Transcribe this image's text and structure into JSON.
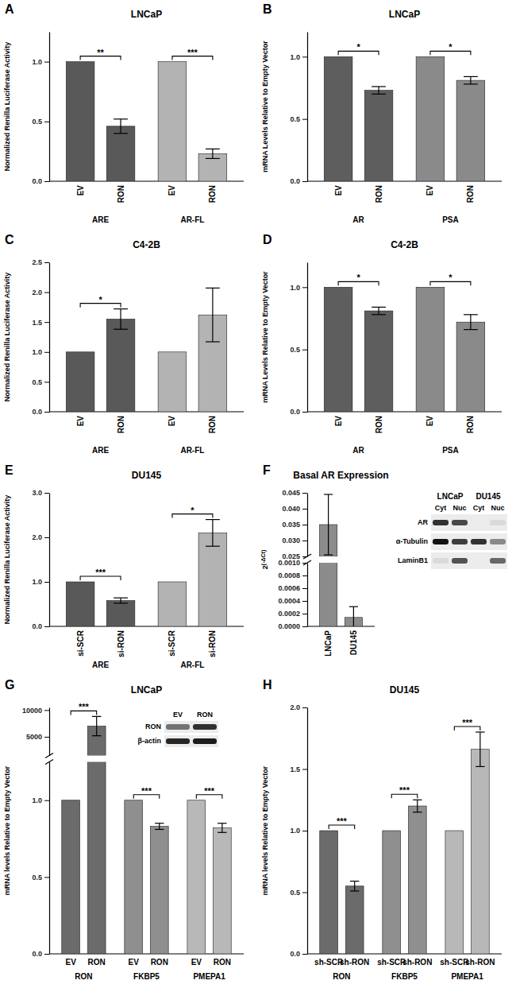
{
  "chart_data": [
    {
      "type": "bar",
      "panel": "A",
      "title": "LNCaP",
      "y_label": "Normalized Renilla Luciferase Activity",
      "groups": [
        "ARE",
        "AR-FL"
      ],
      "categories": [
        "EV",
        "RON",
        "EV",
        "RON"
      ],
      "values": [
        1,
        0.46,
        1,
        0.23
      ],
      "errors": [
        null,
        0.06,
        null,
        0.04
      ],
      "colors": [
        "#595959",
        "#595959",
        "#b3b3b3",
        "#b3b3b3"
      ],
      "ylim": [
        0,
        1.25
      ],
      "yticks": [
        {
          "value": 0,
          "label": "0.0"
        },
        0.5,
        {
          "value": 1,
          "label": "1.0"
        }
      ],
      "annotations": [
        "**",
        "***"
      ]
    },
    {
      "type": "bar",
      "panel": "B",
      "title": "LNCaP",
      "y_label": "mRNA Levels Relative to Empty Vector",
      "groups": [
        "AR",
        "PSA"
      ],
      "categories": [
        "EV",
        "RON",
        "EV",
        "RON"
      ],
      "values": [
        1,
        0.73,
        1,
        0.81
      ],
      "errors": [
        null,
        0.03,
        null,
        0.03
      ],
      "colors": [
        "#5e5e5e",
        "#5e5e5e",
        "#8a8a8a",
        "#8a8a8a"
      ],
      "ylim": [
        0,
        1.2
      ],
      "yticks": [
        {
          "value": 0,
          "label": "0.0"
        },
        0.5,
        {
          "value": 1,
          "label": "1.0"
        }
      ],
      "annotations": [
        "*",
        "*"
      ]
    },
    {
      "type": "bar",
      "panel": "C",
      "title": "C4-2B",
      "y_label": "Normalized Renilla Luciferase Activity",
      "groups": [
        "ARE",
        "AR-FL"
      ],
      "categories": [
        "EV",
        "RON",
        "EV",
        "RON"
      ],
      "values": [
        1,
        1.55,
        1,
        1.62
      ],
      "errors": [
        null,
        0.17,
        null,
        0.45
      ],
      "colors": [
        "#595959",
        "#595959",
        "#b3b3b3",
        "#b3b3b3"
      ],
      "ylim": [
        0,
        2.5
      ],
      "yticks": [
        {
          "value": 0,
          "label": "0.0"
        },
        0.5,
        {
          "value": 1,
          "label": "1.0"
        },
        1.5,
        {
          "value": 2,
          "label": "2.0"
        },
        2.5
      ],
      "annotations": [
        "*",
        null
      ]
    },
    {
      "type": "bar",
      "panel": "D",
      "title": "C4-2B",
      "y_label": "mRNA Levels Relative to Empty Vector",
      "groups": [
        "AR",
        "PSA"
      ],
      "categories": [
        "EV",
        "RON",
        "EV",
        "RON"
      ],
      "values": [
        1,
        0.81,
        1,
        0.72
      ],
      "errors": [
        null,
        0.03,
        null,
        0.06
      ],
      "colors": [
        "#5e5e5e",
        "#5e5e5e",
        "#8a8a8a",
        "#8a8a8a"
      ],
      "ylim": [
        0,
        1.2
      ],
      "yticks": [
        {
          "value": 0,
          "label": "0.0"
        },
        0.5,
        {
          "value": 1,
          "label": "1.0"
        }
      ],
      "annotations": [
        "*",
        "*"
      ]
    },
    {
      "type": "bar",
      "panel": "E",
      "title": "DU145",
      "y_label": "Normalized Renilla Luciferase Activity",
      "groups": [
        "ARE",
        "AR-FL"
      ],
      "categories": [
        "si-SCR",
        "si-RON",
        "si-SCR",
        "si-RON"
      ],
      "values": [
        1,
        0.58,
        1,
        2.1
      ],
      "errors": [
        null,
        0.06,
        null,
        0.3
      ],
      "colors": [
        "#595959",
        "#595959",
        "#b3b3b3",
        "#b3b3b3"
      ],
      "ylim": [
        0,
        3
      ],
      "yticks": [
        {
          "value": 0,
          "label": "0.0"
        },
        {
          "value": 1,
          "label": "1.0"
        },
        {
          "value": 2,
          "label": "2.0"
        },
        {
          "value": 3,
          "label": "3.0"
        }
      ],
      "annotations": [
        "***",
        "*"
      ]
    },
    {
      "type": "bar",
      "panel": "F",
      "title": "Basal AR Expression",
      "y_label": "2(-ΔCt)",
      "categories": [
        "LNCaP",
        "DU145"
      ],
      "values": [
        0.035,
        0.00014
      ],
      "errors": [
        0.0095,
        0.00017
      ],
      "colors": [
        "#8c8c8c",
        "#8c8c8c"
      ],
      "segments": [
        {
          "ylim": [
            0,
            0.001
          ],
          "yticks": [
            {
              "value": 0,
              "label": "0.0000"
            },
            0.0002,
            0.0004,
            0.0006,
            0.0008,
            {
              "value": 0.001,
              "label": "0.0010"
            }
          ]
        },
        {
          "ylim": [
            0.025,
            0.045
          ],
          "yticks": [
            0.025,
            {
              "value": 0.03,
              "label": "0.030"
            },
            0.035,
            {
              "value": 0.04,
              "label": "0.040"
            },
            0.045
          ]
        }
      ],
      "blot": {
        "groups": [
          "LNCaP",
          "DU145"
        ],
        "lanes": [
          "Cyt",
          "Nuc",
          "Cyt",
          "Nuc"
        ],
        "rows": [
          "AR",
          "α-Tubulin",
          "LaminB1"
        ],
        "bands": [
          [
            0.85,
            0.75,
            0,
            0.08
          ],
          [
            1,
            0.8,
            0.85,
            0.45
          ],
          [
            0.08,
            0.7,
            0,
            0.6
          ]
        ]
      }
    },
    {
      "type": "bar",
      "panel": "G",
      "title": "LNCaP",
      "y_label": "mRNA levels Relative to Empty Vector",
      "groups": [
        "RON",
        "FKBP5",
        "PMEPA1"
      ],
      "categories": [
        "EV",
        "RON",
        "EV",
        "RON",
        "EV",
        "RON"
      ],
      "values": [
        1,
        7000,
        1,
        0.83,
        1,
        0.82
      ],
      "errors": [
        null,
        1800,
        null,
        0.02,
        null,
        0.03
      ],
      "colors": [
        "#6b6b6b",
        "#6b6b6b",
        "#8f8f8f",
        "#8f8f8f",
        "#b8b8b8",
        "#b8b8b8"
      ],
      "segments": [
        {
          "ylim": [
            0,
            1.25
          ],
          "yticks": [
            {
              "value": 0,
              "label": "0.0"
            },
            0.5,
            {
              "value": 1,
              "label": "1.0"
            }
          ]
        },
        {
          "ylim": [
            1500,
            10500
          ],
          "yticks": [
            5000,
            10000
          ]
        }
      ],
      "annotations": [
        "***",
        "***",
        "***"
      ],
      "blot": {
        "lanes": [
          "EV",
          "RON"
        ],
        "rows": [
          "RON",
          "β-actin"
        ],
        "bands": [
          [
            0.55,
            0.85
          ],
          [
            0.9,
            0.95
          ]
        ]
      }
    },
    {
      "type": "bar",
      "panel": "H",
      "title": "DU145",
      "y_label": "mRNA levels Relative to Empty Vector",
      "groups": [
        "RON",
        "FKBP5",
        "PMEPA1"
      ],
      "categories": [
        "sh-SCR",
        "sh-RON",
        "sh-SCR",
        "sh-RON",
        "sh-SCR",
        "sh-RON"
      ],
      "values": [
        1,
        0.55,
        1,
        1.2,
        1,
        1.66
      ],
      "errors": [
        null,
        0.04,
        null,
        0.05,
        null,
        0.14
      ],
      "colors": [
        "#6b6b6b",
        "#6b6b6b",
        "#8f8f8f",
        "#8f8f8f",
        "#b8b8b8",
        "#b8b8b8"
      ],
      "ylim": [
        0,
        2
      ],
      "yticks": [
        {
          "value": 0,
          "label": "0.0"
        },
        0.5,
        {
          "value": 1,
          "label": "1.0"
        },
        1.5,
        {
          "value": 2,
          "label": "2.0"
        }
      ],
      "annotations": [
        "***",
        "***",
        "***"
      ]
    }
  ]
}
